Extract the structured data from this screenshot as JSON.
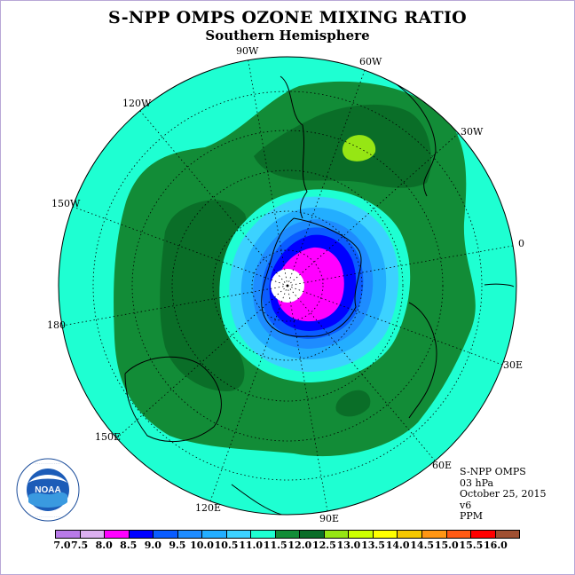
{
  "title": "S-NPP OMPS OZONE MIXING RATIO",
  "subtitle": "Southern Hemisphere",
  "logo_text": "NOAA",
  "logo_ring_text": "NATIONAL OCEANIC AND ATMOSPHERIC ADMINISTRATION · U.S. DEPARTMENT OF COMMERCE",
  "longitude_labels": {
    "lon_90w": "90W",
    "lon_60w": "60W",
    "lon_120w": "120W",
    "lon_30w": "30W",
    "lon_150w": "150W",
    "lon_0": "0",
    "lon_180": "180",
    "lon_30e": "30E",
    "lon_150e": "150E",
    "lon_60e": "60E",
    "lon_120e": "120E",
    "lon_90e": "90E"
  },
  "info": {
    "instrument": "S-NPP OMPS",
    "level": "03 hPa",
    "date": "October 25, 2015",
    "version": "v6",
    "units": "PPM"
  },
  "colorbar": {
    "ticks": [
      "7.0",
      "7.5",
      "8.0",
      "8.5",
      "9.0",
      "9.5",
      "10.0",
      "10.5",
      "11.0",
      "11.5",
      "12.0",
      "12.5",
      "13.0",
      "13.5",
      "14.0",
      "14.5",
      "15.0",
      "15.5",
      "16.0"
    ],
    "colors": [
      "#b87ae8",
      "#dcb0f0",
      "#ff00ff",
      "#0000ff",
      "#0a5cff",
      "#1e8cff",
      "#23aeff",
      "#3cd2ff",
      "#1effd2",
      "#128c37",
      "#0a6e28",
      "#96e614",
      "#cdff00",
      "#ffff00",
      "#f5c800",
      "#ff9614",
      "#ff5a14",
      "#ff0000",
      "#a05032"
    ]
  },
  "colors": {
    "ocean_background": "#1effd2",
    "coastline": "#000000",
    "grid": "#000000"
  }
}
